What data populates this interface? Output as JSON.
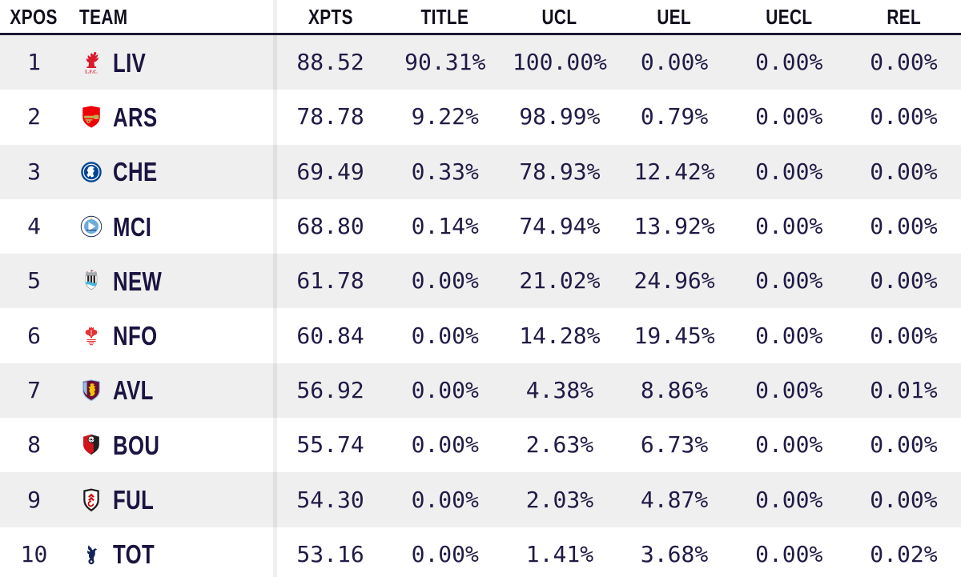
{
  "table": {
    "header": {
      "xpos": "XPOS",
      "team": "TEAM",
      "xpts": "XPTS",
      "title": "TITLE",
      "ucl": "UCL",
      "uel": "UEL",
      "uecl": "UECL",
      "rel": "REL"
    },
    "rows": [
      {
        "xpos": "1",
        "team": "LIV",
        "xpts": "88.52",
        "title": "90.31%",
        "ucl": "100.00%",
        "uel": "0.00%",
        "uecl": "0.00%",
        "rel": "0.00%",
        "badge": {
          "shape": "liverbird",
          "colors": [
            "#d91a2a"
          ]
        }
      },
      {
        "xpos": "2",
        "team": "ARS",
        "xpts": "78.78",
        "title": "9.22%",
        "ucl": "98.99%",
        "uel": "0.79%",
        "uecl": "0.00%",
        "rel": "0.00%",
        "badge": {
          "shape": "cannon-shield",
          "colors": [
            "#ef0107",
            "#c8a951",
            "#ffffff"
          ]
        }
      },
      {
        "xpos": "3",
        "team": "CHE",
        "xpts": "69.49",
        "title": "0.33%",
        "ucl": "78.93%",
        "uel": "12.42%",
        "uecl": "0.00%",
        "rel": "0.00%",
        "badge": {
          "shape": "lion-circle",
          "colors": [
            "#034694",
            "#ffffff"
          ]
        }
      },
      {
        "xpos": "4",
        "team": "MCI",
        "xpts": "68.80",
        "title": "0.14%",
        "ucl": "74.94%",
        "uel": "13.92%",
        "uecl": "0.00%",
        "rel": "0.00%",
        "badge": {
          "shape": "sail-circle",
          "colors": [
            "#6cabdd",
            "#ffffff",
            "#1c2c5b",
            "#ffc659"
          ]
        }
      },
      {
        "xpos": "5",
        "team": "NEW",
        "xpts": "61.78",
        "title": "0.00%",
        "ucl": "21.02%",
        "uel": "24.96%",
        "uecl": "0.00%",
        "rel": "0.00%",
        "badge": {
          "shape": "stripes-shield",
          "colors": [
            "#241f20",
            "#ffffff",
            "#a6a9ac",
            "#41b6e6",
            "#d91a2a"
          ]
        }
      },
      {
        "xpos": "6",
        "team": "NFO",
        "xpts": "60.84",
        "title": "0.00%",
        "ucl": "14.28%",
        "uel": "19.45%",
        "uecl": "0.00%",
        "rel": "0.00%",
        "badge": {
          "shape": "tree",
          "colors": [
            "#e53233",
            "#ffffff"
          ]
        }
      },
      {
        "xpos": "7",
        "team": "AVL",
        "xpts": "56.92",
        "title": "0.00%",
        "ucl": "4.38%",
        "uel": "8.86%",
        "uecl": "0.00%",
        "rel": "0.01%",
        "badge": {
          "shape": "lion-shield",
          "colors": [
            "#670e36",
            "#95bfe5",
            "#f2c300"
          ]
        }
      },
      {
        "xpos": "8",
        "team": "BOU",
        "xpts": "55.74",
        "title": "0.00%",
        "ucl": "2.63%",
        "uel": "6.73%",
        "uecl": "0.00%",
        "rel": "0.00%",
        "badge": {
          "shape": "split-shield",
          "colors": [
            "#d3151b",
            "#231f20",
            "#ffffff"
          ]
        }
      },
      {
        "xpos": "9",
        "team": "FUL",
        "xpts": "54.30",
        "title": "0.00%",
        "ucl": "2.03%",
        "uel": "4.87%",
        "uecl": "0.00%",
        "rel": "0.00%",
        "badge": {
          "shape": "chevron-shield",
          "colors": [
            "#ffffff",
            "#1d1d1b",
            "#cc0000"
          ]
        }
      },
      {
        "xpos": "10",
        "team": "TOT",
        "xpts": "53.16",
        "title": "0.00%",
        "ucl": "1.41%",
        "uel": "3.68%",
        "uecl": "0.00%",
        "rel": "0.02%",
        "badge": {
          "shape": "cockerel",
          "colors": [
            "#132257",
            "#ffffff"
          ]
        }
      }
    ]
  },
  "colors": {
    "row_alt": "#efefef",
    "header_rule": "#1c1831",
    "value_text": "#201b46",
    "team_text": "#1b1340",
    "header_text": "#0f0e1c"
  }
}
